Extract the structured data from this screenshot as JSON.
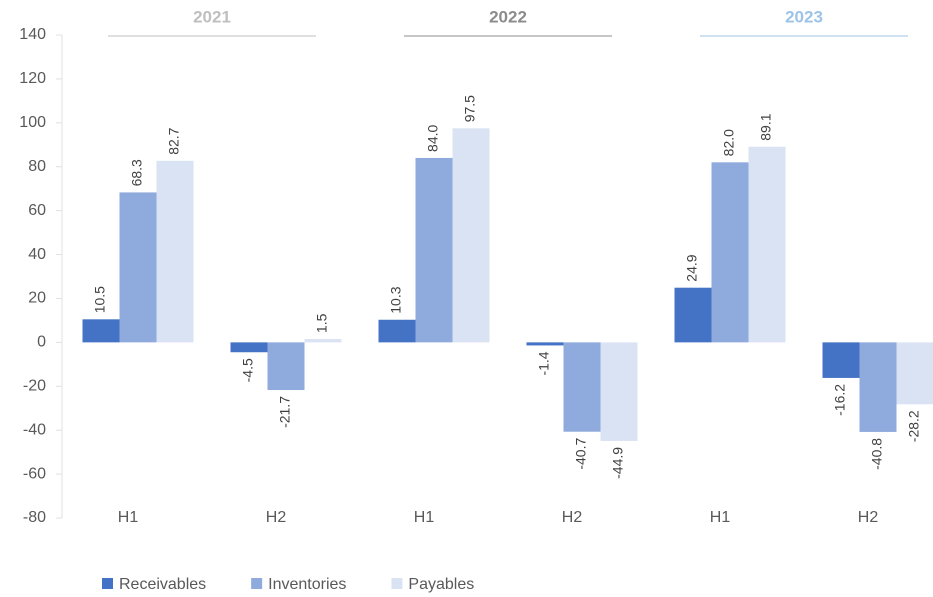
{
  "chart_data": {
    "type": "bar",
    "categories": [
      "H1",
      "H2",
      "H1",
      "H2",
      "H1",
      "H2"
    ],
    "groups": [
      {
        "name": "2021",
        "color": "#bfbfbf"
      },
      {
        "name": "2022",
        "color": "#8c8c8c"
      },
      {
        "name": "2023",
        "color": "#9dc3e6"
      }
    ],
    "series": [
      {
        "name": "Receivables",
        "color": "#4472c4",
        "values": [
          10.5,
          -4.5,
          10.3,
          -1.4,
          24.9,
          -16.2
        ],
        "value_labels": [
          "10.5",
          "-4.5",
          "10.3",
          "-1.4",
          "24.9",
          "-16.2"
        ]
      },
      {
        "name": "Inventories",
        "color": "#8faadc",
        "values": [
          68.3,
          -21.7,
          84.0,
          -40.7,
          82.0,
          -40.8
        ],
        "value_labels": [
          "68.3",
          "-21.7",
          "84.0",
          "-40.7",
          "82.0",
          "-40.8"
        ]
      },
      {
        "name": "Payables",
        "color": "#dae3f3",
        "values": [
          82.7,
          1.5,
          97.5,
          -44.9,
          89.1,
          -28.2
        ],
        "value_labels": [
          "82.7",
          "1.5",
          "97.5",
          "-44.9",
          "89.1",
          "-28.2"
        ]
      }
    ],
    "ylim": [
      -80,
      140
    ],
    "yticks": [
      -80,
      -60,
      -40,
      -20,
      0,
      20,
      40,
      60,
      80,
      100,
      120,
      140
    ],
    "legend": "bottom-left"
  }
}
